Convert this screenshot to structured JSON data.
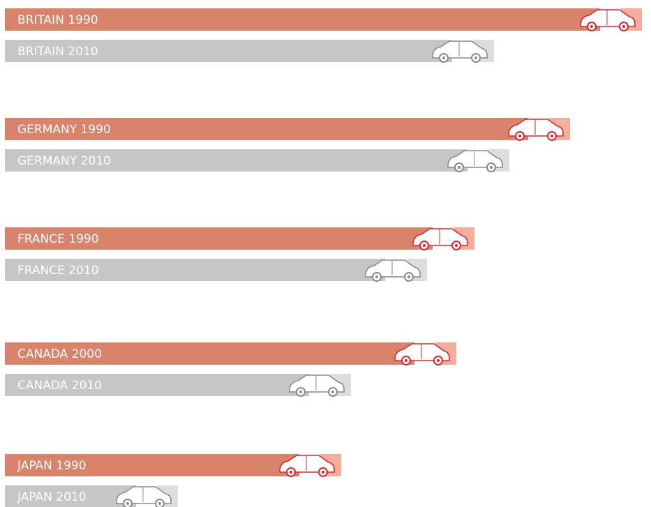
{
  "chart_data": {
    "type": "hbar",
    "categories": [
      "BRITAIN 1990",
      "BRITAIN 2010",
      "GERMANY 1990",
      "GERMANY 2010",
      "FRANCE 1990",
      "FRANCE 2010",
      "CANADA 2000",
      "CANADA 2010",
      "JAPAN 1990",
      "JAPAN 2010"
    ],
    "values": [
      913,
      701,
      810,
      723,
      673,
      605,
      647,
      496,
      482,
      248
    ],
    "colors": [
      "#d8836a",
      "#c6c6c8"
    ],
    "icon_colors": [
      "#e3232b",
      "#8a8a8a"
    ],
    "xlim": [
      0,
      926
    ]
  }
}
